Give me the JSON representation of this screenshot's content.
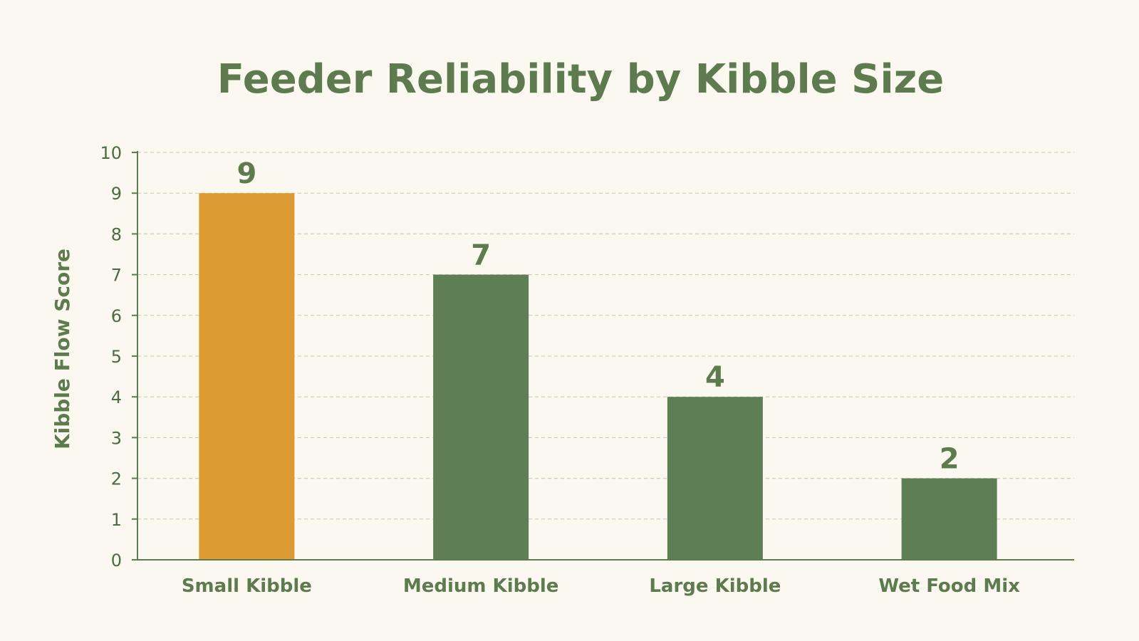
{
  "chart_data": {
    "type": "bar",
    "title": "Feeder Reliability by Kibble Size",
    "xlabel": "",
    "ylabel": "Kibble Flow Score",
    "categories": [
      "Small Kibble",
      "Medium Kibble",
      "Large Kibble",
      "Wet Food Mix"
    ],
    "values": [
      9,
      7,
      4,
      2
    ],
    "data_labels": [
      "9",
      "7",
      "4",
      "2"
    ],
    "ylim": [
      0,
      10
    ],
    "yticks": [
      0,
      1,
      2,
      3,
      4,
      5,
      6,
      7,
      8,
      9,
      10
    ],
    "grid": true,
    "legend": "none",
    "colors": {
      "highlight": "#dc9b32",
      "default": "#5e7f55",
      "text": "#5e7b50"
    },
    "highlight_index": 0
  }
}
